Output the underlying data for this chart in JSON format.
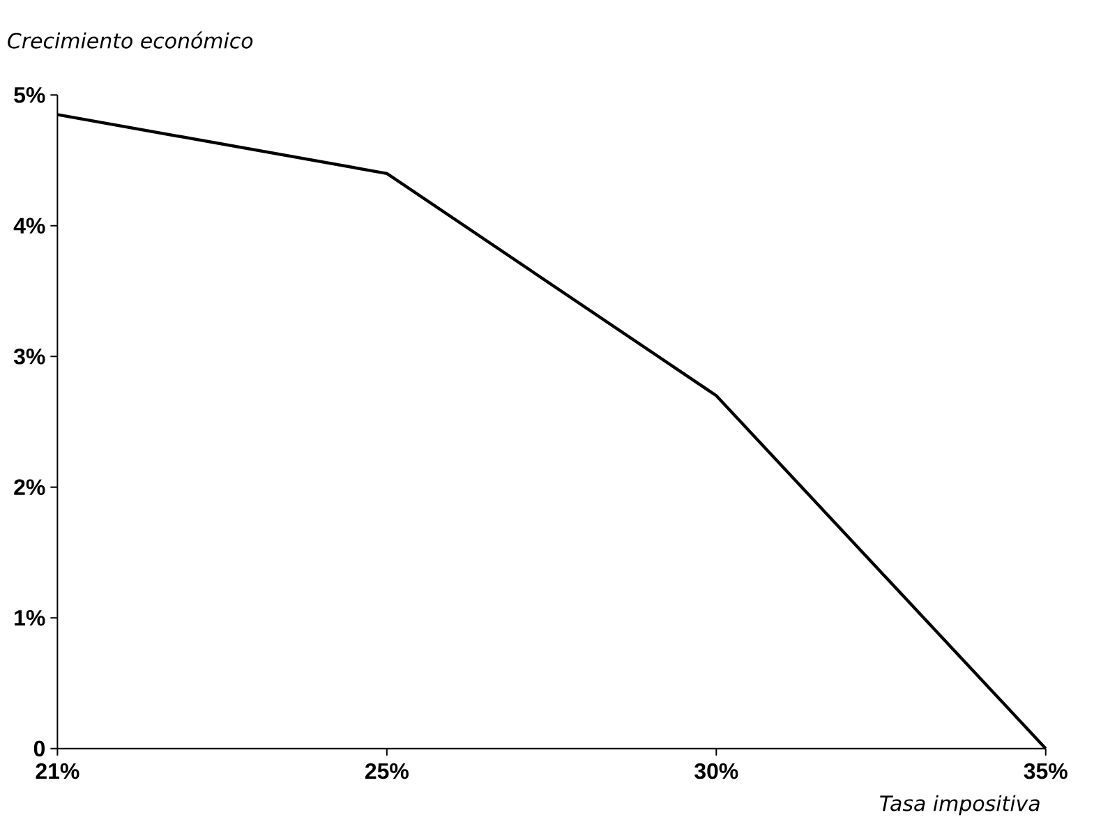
{
  "chart_data": {
    "type": "line",
    "xlabel": "Tasa impositiva",
    "ylabel": "Crecimiento económico",
    "categories": [
      "21%",
      "25%",
      "30%",
      "35%"
    ],
    "series": [
      {
        "color": "#000000",
        "values": [
          4.85,
          4.4,
          2.7,
          0
        ]
      }
    ],
    "ylim": [
      0,
      5
    ],
    "yticks": [
      {
        "value": 0,
        "label": "0"
      },
      {
        "value": 1,
        "label": "1%"
      },
      {
        "value": 2,
        "label": "2%"
      },
      {
        "value": 3,
        "label": "3%"
      },
      {
        "value": 4,
        "label": "4%"
      },
      {
        "value": 5,
        "label": "5%"
      }
    ],
    "grid": false,
    "marker": "none",
    "line_style": "solid"
  }
}
